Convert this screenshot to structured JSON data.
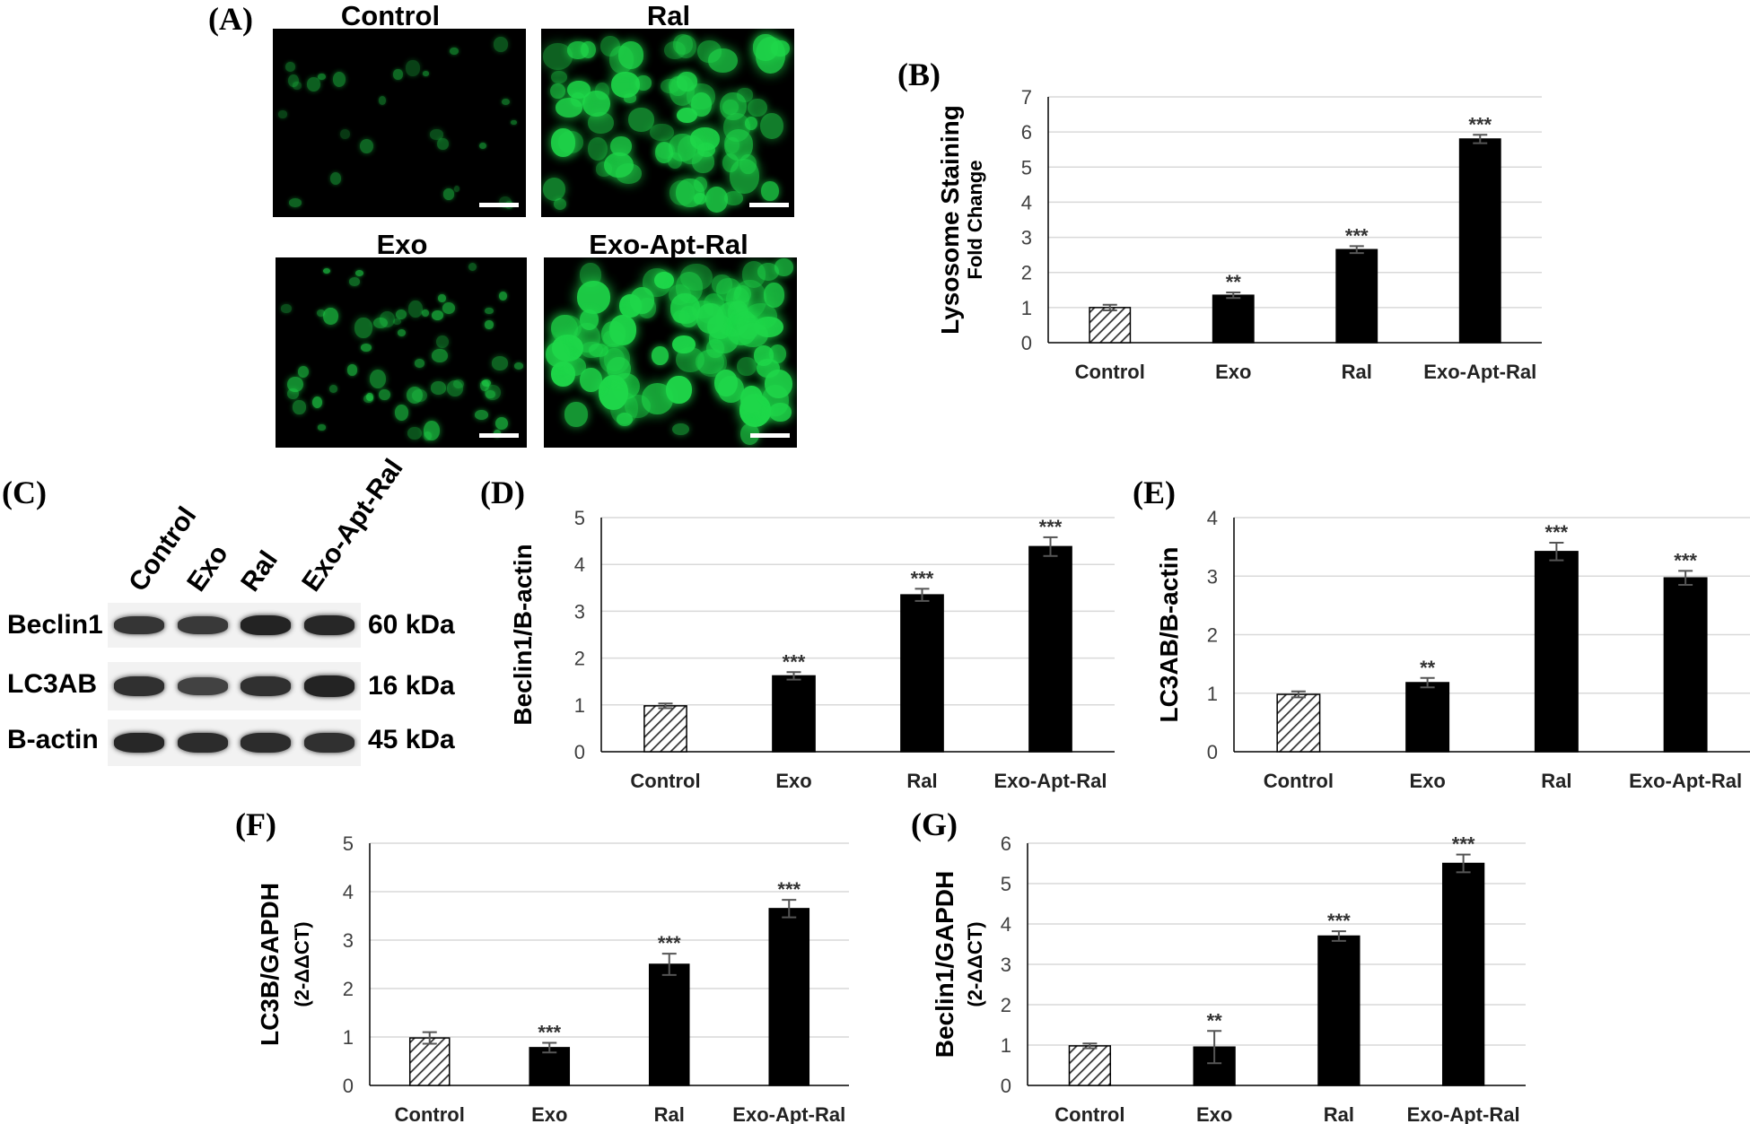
{
  "panel_labels": {
    "A": "(A)",
    "B": "(B)",
    "C": "(C)",
    "D": "(D)",
    "E": "(E)",
    "F": "(F)",
    "G": "(G)"
  },
  "microscopy": {
    "panels": [
      {
        "title": "Control"
      },
      {
        "title": "Ral"
      },
      {
        "title": "Exo"
      },
      {
        "title": "Exo-Apt-Ral"
      }
    ],
    "fluorescence_color": "#1fd84a"
  },
  "western_blot": {
    "lanes": [
      "Control",
      "Exo",
      "Ral",
      "Exo-Apt-Ral"
    ],
    "rows": [
      {
        "protein": "Beclin1",
        "size": "60 kDa",
        "intensity": [
          0.75,
          0.7,
          0.95,
          0.9
        ]
      },
      {
        "protein": "LC3AB",
        "size": "16 kDa",
        "intensity": [
          0.8,
          0.6,
          0.8,
          0.95
        ]
      },
      {
        "protein": "B-actin",
        "size": "45 kDa",
        "intensity": [
          0.9,
          0.85,
          0.85,
          0.8
        ]
      }
    ]
  },
  "chart_data": [
    {
      "id": "B",
      "type": "bar",
      "categories": [
        "Control",
        "Exo",
        "Ral",
        "Exo-Apt-Ral"
      ],
      "values": [
        1.0,
        1.35,
        2.65,
        5.8
      ],
      "errors": [
        0.08,
        0.08,
        0.1,
        0.12
      ],
      "significance": [
        "",
        "**",
        "***",
        "***"
      ],
      "ylabel": "Lysosome Staining",
      "ylabel2": "Fold Change",
      "ylim": [
        0,
        7
      ],
      "yticks": [
        0,
        1,
        2,
        3,
        4,
        5,
        6,
        7
      ],
      "grid": true
    },
    {
      "id": "D",
      "type": "bar",
      "categories": [
        "Control",
        "Exo",
        "Ral",
        "Exo-Apt-Ral"
      ],
      "values": [
        0.98,
        1.62,
        3.35,
        4.38
      ],
      "errors": [
        0.05,
        0.08,
        0.13,
        0.2
      ],
      "significance": [
        "",
        "***",
        "***",
        "***"
      ],
      "ylabel": "Beclin1/B-actin",
      "ylim": [
        0,
        5
      ],
      "yticks": [
        0,
        1,
        2,
        3,
        4,
        5
      ],
      "grid": true
    },
    {
      "id": "E",
      "type": "bar",
      "categories": [
        "Control",
        "Exo",
        "Ral",
        "Exo-Apt-Ral"
      ],
      "values": [
        0.98,
        1.18,
        3.42,
        2.97
      ],
      "errors": [
        0.05,
        0.08,
        0.15,
        0.12
      ],
      "significance": [
        "",
        "**",
        "***",
        "***"
      ],
      "ylabel": "LC3AB/B-actin",
      "ylim": [
        0,
        4
      ],
      "yticks": [
        0,
        1,
        2,
        3,
        4
      ],
      "grid": true
    },
    {
      "id": "F",
      "type": "bar",
      "categories": [
        "Control",
        "Exo",
        "Ral",
        "Exo-Apt-Ral"
      ],
      "values": [
        0.98,
        0.78,
        2.5,
        3.65
      ],
      "errors": [
        0.12,
        0.1,
        0.22,
        0.18
      ],
      "significance": [
        "",
        "***",
        "***",
        "***"
      ],
      "ylabel": "LC3B/GAPDH",
      "ylabel2": "(2-ΔΔCT)",
      "ylim": [
        0,
        5
      ],
      "yticks": [
        0,
        1,
        2,
        3,
        4,
        5
      ],
      "grid": true
    },
    {
      "id": "G",
      "type": "bar",
      "categories": [
        "Control",
        "Exo",
        "Ral",
        "Exo-Apt-Ral"
      ],
      "values": [
        0.98,
        0.95,
        3.7,
        5.5
      ],
      "errors": [
        0.06,
        0.4,
        0.12,
        0.22
      ],
      "significance": [
        "",
        "**",
        "***",
        "***"
      ],
      "ylabel": "Beclin1/GAPDH",
      "ylabel2": "(2-ΔΔCT)",
      "ylim": [
        0,
        6
      ],
      "yticks": [
        0,
        1,
        2,
        3,
        4,
        5,
        6
      ],
      "grid": true
    }
  ],
  "colors": {
    "bar": "#000000",
    "control_hatch": "#333333",
    "grid": "#d9d9d9",
    "axis_text": "#404040"
  }
}
